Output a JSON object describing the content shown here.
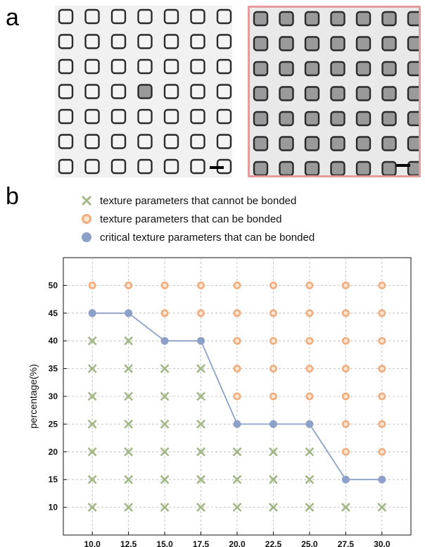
{
  "panels": {
    "a": "a",
    "b": "b"
  },
  "micrographs": {
    "left": {
      "rows": 7,
      "cols": 7,
      "filled": [
        [
          3,
          3
        ]
      ],
      "scale_bar": true
    },
    "right": {
      "rows": 7,
      "cols": 7,
      "all_filled": true,
      "scale_bar": true,
      "border_color": "#e59b9b"
    }
  },
  "legend": [
    {
      "marker": "x-icon",
      "color": "#a3b886",
      "text": "texture parameters that cannot be bonded"
    },
    {
      "marker": "open-circle-icon",
      "color": "#f0ad7f",
      "text": "texture parameters that can be bonded"
    },
    {
      "marker": "filled-circle-icon",
      "color": "#8da1c8",
      "text": "critical texture parameters that can be bonded"
    }
  ],
  "colors": {
    "cannot": "#a3b886",
    "can": "#f0ad7f",
    "critical": "#8da1c8",
    "grid": "#b5b5b5"
  },
  "chart_data": {
    "type": "scatter",
    "xlabel": "",
    "ylabel": "percentage(%)",
    "x": [
      10.0,
      12.5,
      15.0,
      17.5,
      20.0,
      22.5,
      25.0,
      27.5,
      30.0
    ],
    "x_tick_labels": [
      "10.0",
      "12.5",
      "15.0",
      "17.5",
      "20.0",
      "22.5",
      "25.0",
      "27.5",
      "30.0"
    ],
    "y_ticks": [
      10,
      15,
      20,
      25,
      30,
      35,
      40,
      45,
      50
    ],
    "xlim": [
      8.0,
      32.0
    ],
    "ylim": [
      5,
      55
    ],
    "grid": true,
    "legend_placement": "top",
    "critical": [
      45,
      45,
      40,
      40,
      25,
      25,
      25,
      15,
      15
    ],
    "series": [
      {
        "name": "texture parameters that cannot be bonded",
        "marker": "x",
        "points": [
          [
            10,
            10
          ],
          [
            10,
            15
          ],
          [
            10,
            20
          ],
          [
            10,
            25
          ],
          [
            10,
            30
          ],
          [
            10,
            35
          ],
          [
            10,
            40
          ],
          [
            12.5,
            10
          ],
          [
            12.5,
            15
          ],
          [
            12.5,
            20
          ],
          [
            12.5,
            25
          ],
          [
            12.5,
            30
          ],
          [
            12.5,
            35
          ],
          [
            12.5,
            40
          ],
          [
            15,
            10
          ],
          [
            15,
            15
          ],
          [
            15,
            20
          ],
          [
            15,
            25
          ],
          [
            15,
            30
          ],
          [
            15,
            35
          ],
          [
            17.5,
            10
          ],
          [
            17.5,
            15
          ],
          [
            17.5,
            20
          ],
          [
            17.5,
            25
          ],
          [
            17.5,
            30
          ],
          [
            17.5,
            35
          ],
          [
            20,
            10
          ],
          [
            20,
            15
          ],
          [
            20,
            20
          ],
          [
            22.5,
            10
          ],
          [
            22.5,
            15
          ],
          [
            22.5,
            20
          ],
          [
            25,
            10
          ],
          [
            25,
            15
          ],
          [
            25,
            20
          ],
          [
            27.5,
            10
          ],
          [
            30,
            10
          ]
        ]
      },
      {
        "name": "texture parameters that can be bonded",
        "marker": "open-circle",
        "points": [
          [
            10,
            50
          ],
          [
            12.5,
            50
          ],
          [
            15,
            45
          ],
          [
            15,
            50
          ],
          [
            17.5,
            45
          ],
          [
            17.5,
            50
          ],
          [
            20,
            30
          ],
          [
            20,
            35
          ],
          [
            20,
            40
          ],
          [
            20,
            45
          ],
          [
            20,
            50
          ],
          [
            22.5,
            30
          ],
          [
            22.5,
            35
          ],
          [
            22.5,
            40
          ],
          [
            22.5,
            45
          ],
          [
            22.5,
            50
          ],
          [
            25,
            30
          ],
          [
            25,
            35
          ],
          [
            25,
            40
          ],
          [
            25,
            45
          ],
          [
            25,
            50
          ],
          [
            27.5,
            20
          ],
          [
            27.5,
            25
          ],
          [
            27.5,
            30
          ],
          [
            27.5,
            35
          ],
          [
            27.5,
            40
          ],
          [
            27.5,
            45
          ],
          [
            27.5,
            50
          ],
          [
            30,
            20
          ],
          [
            30,
            25
          ],
          [
            30,
            30
          ],
          [
            30,
            35
          ],
          [
            30,
            40
          ],
          [
            30,
            45
          ],
          [
            30,
            50
          ]
        ]
      },
      {
        "name": "critical texture parameters that can be bonded",
        "marker": "filled-circle",
        "points": [
          [
            10,
            45
          ],
          [
            12.5,
            45
          ],
          [
            15,
            40
          ],
          [
            17.5,
            40
          ],
          [
            20,
            25
          ],
          [
            22.5,
            25
          ],
          [
            25,
            25
          ],
          [
            27.5,
            15
          ],
          [
            30,
            15
          ]
        ]
      }
    ]
  }
}
